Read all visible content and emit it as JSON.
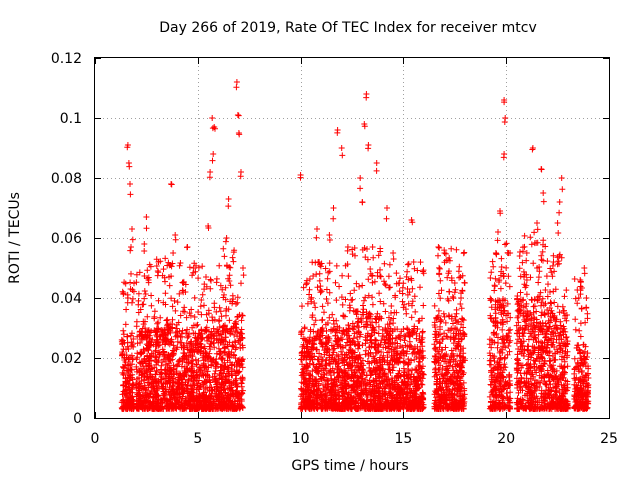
{
  "chart_data": {
    "type": "scatter",
    "title": "Day 266 of 2019, Rate Of TEC Index for receiver mtcv",
    "xlabel": "GPS time / hours",
    "ylabel": "ROTI / TECUs",
    "xlim": [
      0,
      25
    ],
    "ylim": [
      0,
      0.12
    ],
    "xticks": [
      0,
      5,
      10,
      15,
      20,
      25
    ],
    "xtick_labels": [
      "0",
      "5",
      "10",
      "15",
      "20",
      "25"
    ],
    "yticks": [
      0,
      0.02,
      0.04,
      0.06,
      0.08,
      0.1,
      0.12
    ],
    "ytick_labels": [
      "0",
      "0.02",
      "0.04",
      "0.06",
      "0.08",
      "0.1",
      "0.12"
    ],
    "grid": true,
    "marker": "+",
    "color": "#ff0000",
    "series": [
      {
        "name": "ROTI",
        "clusters": [
          {
            "x": [
              1.3,
              1.9
            ],
            "y_dense_max": 0.028,
            "outliers": [
              [
                1.6,
                0.091
              ],
              [
                1.65,
                0.085
              ],
              [
                1.7,
                0.078
              ],
              [
                1.8,
                0.063
              ],
              [
                1.75,
                0.057
              ],
              [
                1.6,
                0.04
              ]
            ]
          },
          {
            "x": [
              2.0,
              3.0
            ],
            "y_dense_max": 0.03,
            "outliers": [
              [
                2.5,
                0.067
              ],
              [
                2.4,
                0.058
              ],
              [
                2.6,
                0.046
              ]
            ]
          },
          {
            "x": [
              3.0,
              4.0
            ],
            "y_dense_max": 0.032,
            "outliers": [
              [
                3.7,
                0.078
              ],
              [
                3.9,
                0.061
              ],
              [
                3.8,
                0.055
              ],
              [
                3.6,
                0.047
              ]
            ]
          },
          {
            "x": [
              4.0,
              5.0
            ],
            "y_dense_max": 0.03,
            "outliers": [
              [
                4.5,
                0.057
              ],
              [
                4.3,
                0.045
              ],
              [
                4.8,
                0.05
              ]
            ]
          },
          {
            "x": [
              5.0,
              6.2
            ],
            "y_dense_max": 0.03,
            "outliers": [
              [
                5.7,
                0.1
              ],
              [
                5.8,
                0.097
              ],
              [
                5.75,
                0.088
              ],
              [
                5.6,
                0.082
              ],
              [
                5.5,
                0.064
              ],
              [
                5.4,
                0.047
              ]
            ]
          },
          {
            "x": [
              6.2,
              7.2
            ],
            "y_dense_max": 0.035,
            "outliers": [
              [
                6.9,
                0.112
              ],
              [
                6.95,
                0.101
              ],
              [
                7.0,
                0.095
              ],
              [
                7.1,
                0.082
              ],
              [
                6.5,
                0.073
              ],
              [
                6.4,
                0.06
              ],
              [
                7.2,
                0.05
              ]
            ]
          },
          {
            "x": [
              10.0,
              11.0
            ],
            "y_dense_max": 0.03,
            "outliers": [
              [
                10.0,
                0.081
              ],
              [
                10.8,
                0.063
              ],
              [
                10.9,
                0.052
              ],
              [
                10.3,
                0.045
              ]
            ]
          },
          {
            "x": [
              11.0,
              12.5
            ],
            "y_dense_max": 0.03,
            "outliers": [
              [
                11.8,
                0.096
              ],
              [
                12.0,
                0.09
              ],
              [
                11.6,
                0.07
              ],
              [
                11.4,
                0.061
              ],
              [
                12.3,
                0.057
              ]
            ]
          },
          {
            "x": [
              12.5,
              14.0
            ],
            "y_dense_max": 0.035,
            "outliers": [
              [
                13.2,
                0.108
              ],
              [
                13.1,
                0.098
              ],
              [
                13.3,
                0.091
              ],
              [
                12.9,
                0.08
              ],
              [
                13.0,
                0.072
              ],
              [
                13.5,
                0.057
              ]
            ]
          },
          {
            "x": [
              14.0,
              15.0
            ],
            "y_dense_max": 0.03,
            "outliers": [
              [
                13.7,
                0.085
              ],
              [
                14.2,
                0.07
              ],
              [
                14.5,
                0.055
              ],
              [
                14.8,
                0.045
              ]
            ]
          },
          {
            "x": [
              15.0,
              16.0
            ],
            "y_dense_max": 0.03,
            "outliers": [
              [
                15.4,
                0.066
              ],
              [
                15.5,
                0.052
              ],
              [
                15.2,
                0.043
              ]
            ]
          },
          {
            "x": [
              16.5,
              18.0
            ],
            "y_dense_max": 0.035,
            "outliers": [
              [
                16.7,
                0.057
              ],
              [
                17.0,
                0.055
              ],
              [
                17.5,
                0.045
              ],
              [
                17.8,
                0.04
              ]
            ]
          },
          {
            "x": [
              19.2,
              20.2
            ],
            "y_dense_max": 0.04,
            "outliers": [
              [
                19.9,
                0.106
              ],
              [
                19.95,
                0.1
              ],
              [
                19.9,
                0.088
              ],
              [
                19.7,
                0.069
              ],
              [
                19.6,
                0.062
              ],
              [
                19.5,
                0.055
              ]
            ]
          },
          {
            "x": [
              20.5,
              22.0
            ],
            "y_dense_max": 0.04,
            "outliers": [
              [
                21.3,
                0.09
              ],
              [
                21.7,
                0.083
              ],
              [
                21.8,
                0.075
              ],
              [
                21.5,
                0.065
              ],
              [
                21.0,
                0.055
              ]
            ]
          },
          {
            "x": [
              22.0,
              23.0
            ],
            "y_dense_max": 0.035,
            "outliers": [
              [
                22.7,
                0.08
              ],
              [
                22.6,
                0.072
              ],
              [
                22.5,
                0.065
              ],
              [
                22.3,
                0.052
              ]
            ]
          },
          {
            "x": [
              23.3,
              24.0
            ],
            "y_dense_max": 0.025,
            "outliers": [
              [
                23.8,
                0.05
              ],
              [
                23.6,
                0.046
              ],
              [
                23.9,
                0.04
              ]
            ]
          }
        ]
      }
    ]
  }
}
